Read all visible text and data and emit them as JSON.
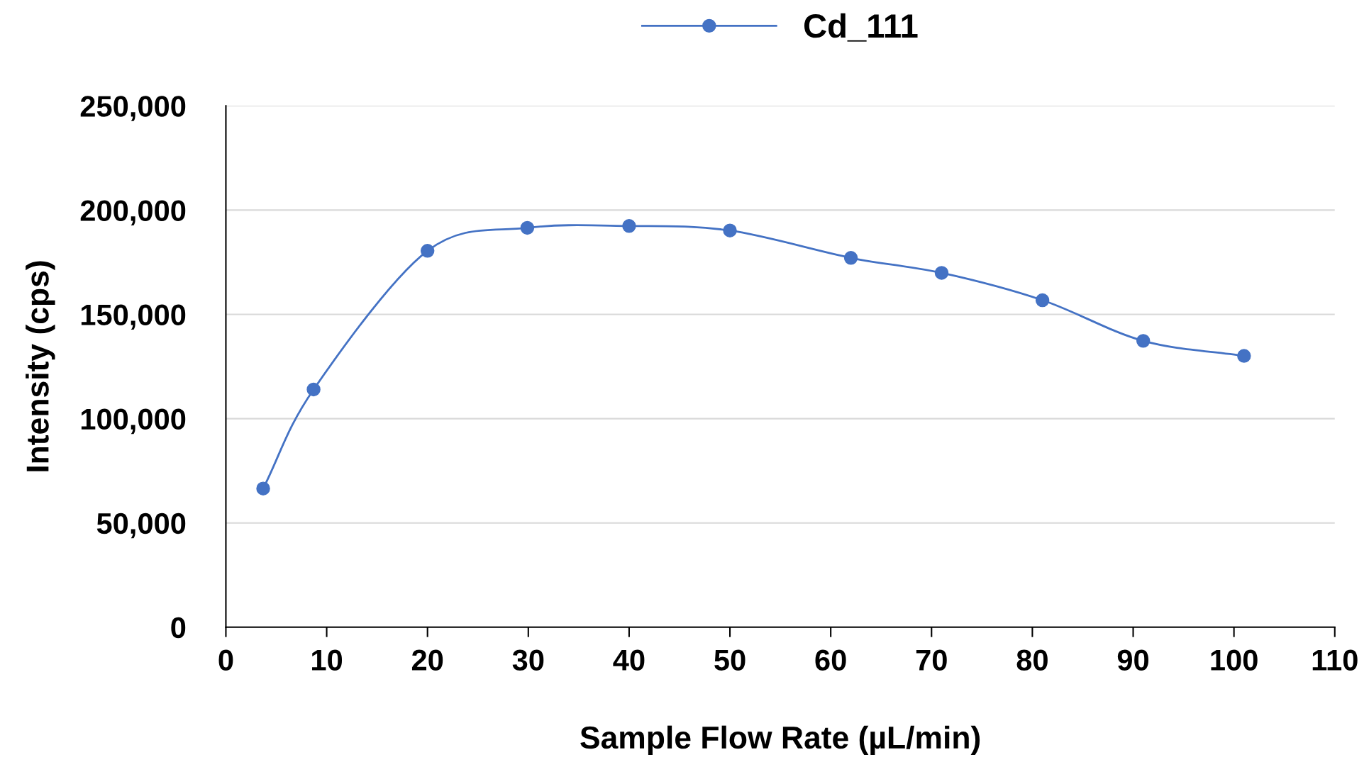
{
  "chart_data": {
    "type": "line",
    "xlabel": "Sample Flow Rate (µL/min)",
    "ylabel": "Intensity (cps)",
    "x": [
      3.7,
      8.7,
      20,
      29.9,
      40,
      50,
      62,
      71,
      81,
      91,
      101
    ],
    "series": [
      {
        "name": "Cd_111",
        "color": "#4472c4",
        "values": [
          66500,
          114000,
          180500,
          191500,
          192400,
          190200,
          177100,
          169900,
          156800,
          137300,
          130100
        ]
      }
    ],
    "xlim": [
      0,
      110
    ],
    "xticks": [
      0,
      10,
      20,
      30,
      40,
      50,
      60,
      70,
      80,
      90,
      100,
      110
    ],
    "ylim": [
      0,
      250000
    ],
    "yticks": [
      {
        "value": 0,
        "label": "0"
      },
      {
        "value": 50000,
        "label": "50,000"
      },
      {
        "value": 100000,
        "label": "100,000"
      },
      {
        "value": 150000,
        "label": "150,000"
      },
      {
        "value": 200000,
        "label": "200,000"
      },
      {
        "value": 250000,
        "label": "250,000"
      }
    ],
    "grid": "y",
    "legend": "top",
    "marker": "circle",
    "line_style": "solid"
  }
}
